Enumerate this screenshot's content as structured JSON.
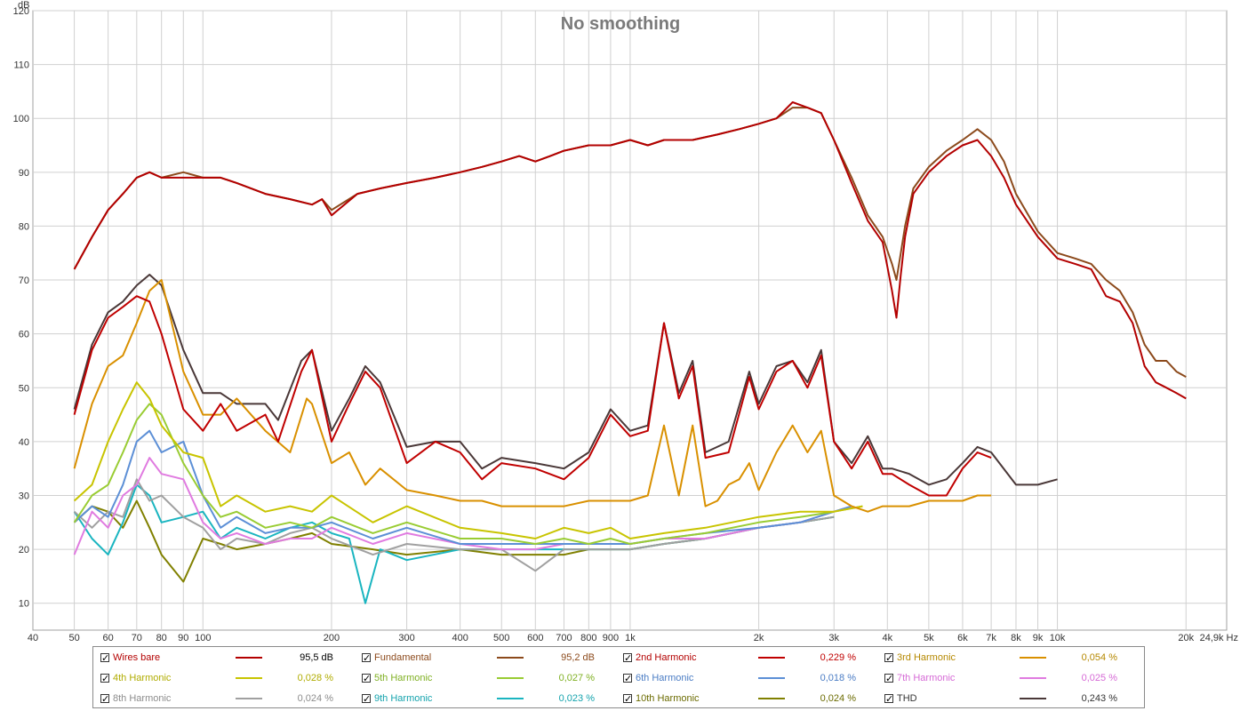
{
  "chart_data": {
    "type": "line",
    "title": "No smoothing",
    "ylabel": "dB",
    "xlabel_unit": "Hz",
    "x_scale": "log",
    "xlim": [
      40,
      24900
    ],
    "ylim": [
      5,
      120
    ],
    "grid": true,
    "x_ticks": [
      {
        "v": 40,
        "t": "40"
      },
      {
        "v": 50,
        "t": "50"
      },
      {
        "v": 60,
        "t": "60"
      },
      {
        "v": 70,
        "t": "70"
      },
      {
        "v": 80,
        "t": "80"
      },
      {
        "v": 90,
        "t": "90"
      },
      {
        "v": 100,
        "t": "100"
      },
      {
        "v": 200,
        "t": "200"
      },
      {
        "v": 300,
        "t": "300"
      },
      {
        "v": 400,
        "t": "400"
      },
      {
        "v": 500,
        "t": "500"
      },
      {
        "v": 600,
        "t": "600"
      },
      {
        "v": 700,
        "t": "700"
      },
      {
        "v": 800,
        "t": "800"
      },
      {
        "v": 900,
        "t": "900"
      },
      {
        "v": 1000,
        "t": "1k"
      },
      {
        "v": 2000,
        "t": "2k"
      },
      {
        "v": 3000,
        "t": "3k"
      },
      {
        "v": 4000,
        "t": "4k"
      },
      {
        "v": 5000,
        "t": "5k"
      },
      {
        "v": 6000,
        "t": "6k"
      },
      {
        "v": 7000,
        "t": "7k"
      },
      {
        "v": 8000,
        "t": "8k"
      },
      {
        "v": 9000,
        "t": "9k"
      },
      {
        "v": 10000,
        "t": "10k"
      },
      {
        "v": 20000,
        "t": "20k"
      },
      {
        "v": 24900,
        "t": "24,9k Hz"
      }
    ],
    "y_ticks": [
      10,
      20,
      30,
      40,
      50,
      60,
      70,
      80,
      90,
      100,
      110,
      120
    ],
    "series": [
      {
        "name": "Wires bare",
        "value": "95,5 dB",
        "color": "#b30000",
        "x": [
          50,
          55,
          60,
          65,
          70,
          75,
          80,
          90,
          100,
          110,
          120,
          140,
          160,
          180,
          190,
          200,
          230,
          260,
          300,
          350,
          400,
          450,
          500,
          550,
          600,
          650,
          700,
          800,
          900,
          1000,
          1100,
          1200,
          1400,
          1600,
          1800,
          2000,
          2200,
          2400,
          2600,
          2800,
          3000,
          3300,
          3600,
          3900,
          4100,
          4200,
          4300,
          4400,
          4600,
          5000,
          5500,
          6000,
          6500,
          7000,
          7500,
          8000,
          9000,
          10000,
          11000,
          12000,
          13000,
          14000,
          15000,
          16000,
          17000,
          18000,
          19000,
          20000
        ],
        "y": [
          72,
          78,
          83,
          86,
          89,
          90,
          89,
          89,
          89,
          89,
          88,
          86,
          85,
          84,
          85,
          82,
          86,
          87,
          88,
          89,
          90,
          91,
          92,
          93,
          92,
          93,
          94,
          95,
          95,
          96,
          95,
          96,
          96,
          97,
          98,
          99,
          100,
          103,
          102,
          101,
          96,
          88,
          81,
          77,
          68,
          63,
          71,
          78,
          86,
          90,
          93,
          95,
          96,
          93,
          89,
          84,
          78,
          74,
          73,
          72,
          67,
          66,
          62,
          54,
          51,
          50,
          49,
          48
        ]
      },
      {
        "name": "Fundamental",
        "value": "95,2 dB",
        "color": "#8c4a1c",
        "x": [
          50,
          55,
          60,
          65,
          70,
          75,
          80,
          90,
          100,
          110,
          120,
          140,
          160,
          180,
          190,
          200,
          230,
          260,
          300,
          350,
          400,
          450,
          500,
          550,
          600,
          650,
          700,
          800,
          900,
          1000,
          1100,
          1200,
          1400,
          1600,
          1800,
          2000,
          2200,
          2400,
          2600,
          2800,
          3000,
          3300,
          3600,
          3900,
          4100,
          4200,
          4300,
          4400,
          4600,
          5000,
          5500,
          6000,
          6500,
          7000,
          7500,
          8000,
          9000,
          10000,
          11000,
          12000,
          13000,
          14000,
          15000,
          16000,
          17000,
          18000,
          19000,
          20000
        ],
        "y": [
          72,
          78,
          83,
          86,
          89,
          90,
          89,
          90,
          89,
          89,
          88,
          86,
          85,
          84,
          85,
          83,
          86,
          87,
          88,
          89,
          90,
          91,
          92,
          93,
          92,
          93,
          94,
          95,
          95,
          96,
          95,
          96,
          96,
          97,
          98,
          99,
          100,
          102,
          102,
          101,
          96,
          89,
          82,
          78,
          73,
          70,
          75,
          80,
          87,
          91,
          94,
          96,
          98,
          96,
          92,
          86,
          79,
          75,
          74,
          73,
          70,
          68,
          64,
          58,
          55,
          55,
          53,
          52
        ]
      },
      {
        "name": "2nd Harmonic",
        "value": "0,229 %",
        "color": "#c00000",
        "x": [
          50,
          55,
          60,
          65,
          70,
          75,
          80,
          90,
          100,
          110,
          120,
          140,
          150,
          170,
          180,
          200,
          220,
          240,
          260,
          300,
          350,
          400,
          450,
          500,
          600,
          700,
          800,
          900,
          1000,
          1100,
          1200,
          1300,
          1400,
          1500,
          1700,
          1900,
          2000,
          2200,
          2400,
          2600,
          2800,
          3000,
          3300,
          3600,
          3900,
          4100,
          4500,
          5000,
          5500,
          6000,
          6500,
          7000
        ],
        "y": [
          45,
          57,
          63,
          65,
          67,
          66,
          60,
          46,
          42,
          47,
          42,
          45,
          40,
          53,
          57,
          40,
          47,
          53,
          50,
          36,
          40,
          38,
          33,
          36,
          35,
          33,
          37,
          45,
          41,
          42,
          62,
          48,
          54,
          37,
          38,
          52,
          46,
          53,
          55,
          50,
          56,
          40,
          35,
          40,
          34,
          34,
          32,
          30,
          30,
          35,
          38,
          37
        ]
      },
      {
        "name": "3rd Harmonic",
        "value": "0,054 %",
        "color": "#d99000",
        "x": [
          50,
          55,
          60,
          65,
          70,
          75,
          80,
          90,
          100,
          110,
          120,
          140,
          160,
          175,
          180,
          200,
          220,
          240,
          260,
          300,
          350,
          400,
          450,
          500,
          600,
          700,
          800,
          900,
          1000,
          1100,
          1200,
          1300,
          1400,
          1500,
          1600,
          1700,
          1800,
          1900,
          2000,
          2200,
          2400,
          2600,
          2800,
          3000,
          3300,
          3600,
          3900,
          4100,
          4500,
          5000,
          5500,
          6000,
          6500,
          7000
        ],
        "y": [
          35,
          47,
          54,
          56,
          62,
          68,
          70,
          53,
          45,
          45,
          48,
          42,
          38,
          48,
          47,
          36,
          38,
          32,
          35,
          31,
          30,
          29,
          29,
          28,
          28,
          28,
          29,
          29,
          29,
          30,
          43,
          30,
          43,
          28,
          29,
          32,
          33,
          36,
          31,
          38,
          43,
          38,
          42,
          30,
          28,
          27,
          28,
          28,
          28,
          29,
          29,
          29,
          30,
          30
        ]
      },
      {
        "name": "4th Harmonic",
        "value": "0,028 %",
        "color": "#c8c400",
        "x": [
          50,
          55,
          60,
          65,
          70,
          75,
          80,
          90,
          100,
          110,
          120,
          140,
          160,
          180,
          200,
          250,
          300,
          400,
          500,
          600,
          700,
          800,
          900,
          1000,
          1200,
          1500,
          2000,
          2500,
          3000,
          3500
        ],
        "y": [
          29,
          32,
          40,
          46,
          51,
          48,
          43,
          38,
          37,
          28,
          30,
          27,
          28,
          27,
          30,
          25,
          28,
          24,
          23,
          22,
          24,
          23,
          24,
          22,
          23,
          24,
          26,
          27,
          27,
          28
        ]
      },
      {
        "name": "5th Harmonic",
        "value": "0,027 %",
        "color": "#99cc33",
        "x": [
          50,
          55,
          60,
          65,
          70,
          75,
          80,
          90,
          100,
          110,
          120,
          140,
          160,
          180,
          200,
          250,
          300,
          400,
          500,
          600,
          700,
          800,
          900,
          1000,
          1200,
          1500,
          2000,
          2500,
          3000,
          3500
        ],
        "y": [
          25,
          30,
          32,
          38,
          44,
          47,
          45,
          36,
          30,
          26,
          27,
          24,
          25,
          24,
          26,
          23,
          25,
          22,
          22,
          21,
          22,
          21,
          22,
          21,
          22,
          23,
          25,
          26,
          27,
          28
        ]
      },
      {
        "name": "6th Harmonic",
        "value": "0,018 %",
        "color": "#5c8fd6",
        "x": [
          50,
          55,
          60,
          65,
          70,
          75,
          80,
          90,
          100,
          110,
          120,
          140,
          160,
          180,
          200,
          250,
          300,
          400,
          500,
          600,
          700,
          800,
          900,
          1000,
          1200,
          1500,
          2000,
          2500,
          3000,
          3300
        ],
        "y": [
          25,
          28,
          26,
          32,
          40,
          42,
          38,
          40,
          30,
          24,
          26,
          23,
          24,
          24,
          25,
          22,
          24,
          21,
          21,
          21,
          21,
          21,
          21,
          21,
          22,
          23,
          24,
          25,
          27,
          28
        ]
      },
      {
        "name": "7th Harmonic",
        "value": "0,025 %",
        "color": "#e07be0",
        "x": [
          50,
          55,
          60,
          65,
          70,
          75,
          80,
          90,
          100,
          110,
          120,
          140,
          160,
          180,
          200,
          250,
          300,
          400,
          500,
          600,
          700,
          800,
          900,
          1000,
          1200,
          1500,
          2000,
          2500,
          3000,
          3300
        ],
        "y": [
          19,
          27,
          24,
          30,
          32,
          37,
          34,
          33,
          25,
          22,
          23,
          21,
          22,
          22,
          24,
          21,
          23,
          21,
          20,
          20,
          21,
          21,
          21,
          21,
          22,
          22,
          24,
          25,
          27,
          28
        ]
      },
      {
        "name": "8th Harmonic",
        "value": "0,024 %",
        "color": "#a0a0a0",
        "x": [
          50,
          55,
          60,
          65,
          70,
          75,
          80,
          90,
          100,
          110,
          120,
          140,
          160,
          180,
          200,
          250,
          300,
          400,
          500,
          600,
          700,
          800,
          900,
          1000,
          1200,
          1500,
          2000,
          2500,
          3000
        ],
        "y": [
          27,
          24,
          27,
          26,
          33,
          29,
          30,
          26,
          24,
          20,
          22,
          21,
          23,
          24,
          22,
          19,
          21,
          20,
          20,
          16,
          20,
          20,
          20,
          20,
          21,
          22,
          24,
          25,
          26
        ]
      },
      {
        "name": "9th Harmonic",
        "value": "0,023 %",
        "color": "#1ab5c0",
        "x": [
          50,
          55,
          60,
          65,
          70,
          75,
          80,
          90,
          100,
          110,
          120,
          140,
          160,
          180,
          200,
          220,
          240,
          260,
          300,
          400,
          500,
          600,
          700,
          800,
          900,
          1000,
          1200,
          1500,
          2000,
          2500,
          3000
        ],
        "y": [
          27,
          22,
          19,
          25,
          32,
          30,
          25,
          26,
          27,
          22,
          24,
          22,
          24,
          25,
          23,
          22,
          10,
          20,
          18,
          20,
          20,
          20,
          20,
          20,
          20,
          20,
          21,
          22,
          24,
          25,
          26
        ]
      },
      {
        "name": "10th Harmonic",
        "value": "0,024 %",
        "color": "#808000",
        "x": [
          50,
          55,
          60,
          65,
          70,
          75,
          80,
          90,
          100,
          110,
          120,
          140,
          160,
          180,
          200,
          250,
          300,
          400,
          500,
          600,
          700,
          800,
          900,
          1000,
          1200,
          1500,
          2000,
          2500,
          3000
        ],
        "y": [
          25,
          28,
          27,
          24,
          29,
          24,
          19,
          14,
          22,
          21,
          20,
          21,
          22,
          23,
          21,
          20,
          19,
          20,
          19,
          19,
          19,
          20,
          20,
          20,
          21,
          22,
          24,
          25,
          26
        ]
      },
      {
        "name": "THD",
        "value": "0,243 %",
        "color": "#4a3838",
        "x": [
          50,
          55,
          60,
          65,
          70,
          75,
          80,
          90,
          100,
          110,
          120,
          140,
          150,
          170,
          180,
          200,
          220,
          240,
          260,
          300,
          350,
          400,
          450,
          500,
          600,
          700,
          800,
          900,
          1000,
          1100,
          1200,
          1300,
          1400,
          1500,
          1700,
          1900,
          2000,
          2200,
          2400,
          2600,
          2800,
          3000,
          3300,
          3600,
          3900,
          4100,
          4500,
          5000,
          5500,
          6000,
          6500,
          7000,
          8000,
          9000,
          10000
        ],
        "y": [
          46,
          58,
          64,
          66,
          69,
          71,
          69,
          57,
          49,
          49,
          47,
          47,
          44,
          55,
          57,
          42,
          48,
          54,
          51,
          39,
          40,
          40,
          35,
          37,
          36,
          35,
          38,
          46,
          42,
          43,
          62,
          49,
          55,
          38,
          40,
          53,
          47,
          54,
          55,
          51,
          57,
          40,
          36,
          41,
          35,
          35,
          34,
          32,
          33,
          36,
          39,
          38,
          32,
          32,
          33
        ]
      }
    ]
  }
}
